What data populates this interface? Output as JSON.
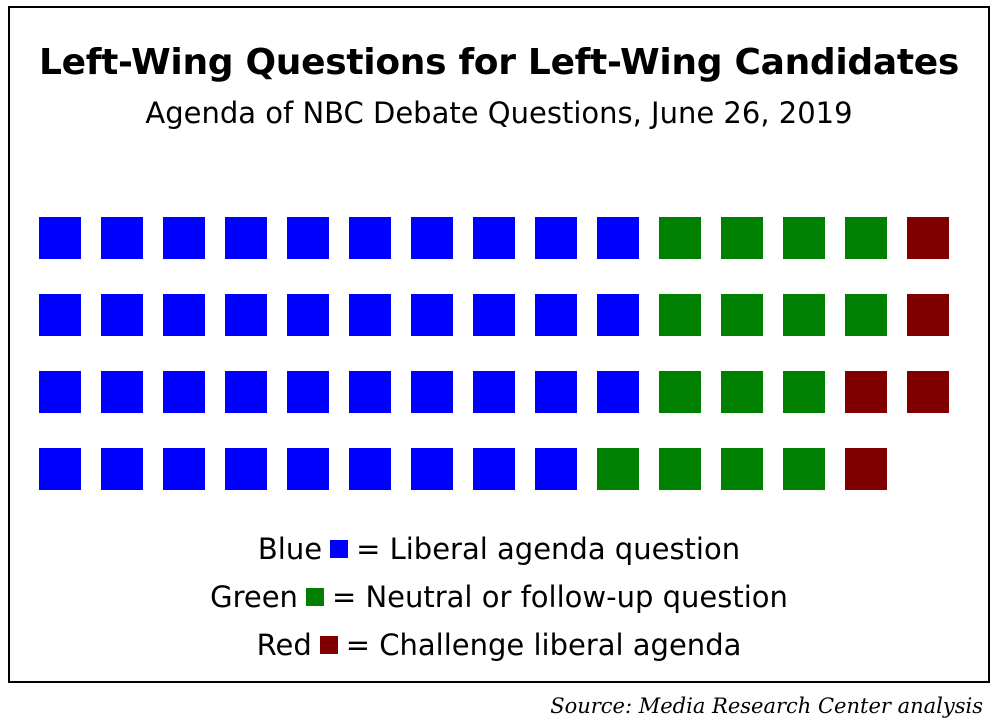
{
  "chart_data": {
    "type": "waffle",
    "title": "Left-Wing Questions for Left-Wing Candidates",
    "subtitle": "Agenda of NBC Debate Questions, June 26, 2019",
    "rows": [
      [
        "blue",
        "blue",
        "blue",
        "blue",
        "blue",
        "blue",
        "blue",
        "blue",
        "blue",
        "blue",
        "green",
        "green",
        "green",
        "green",
        "red"
      ],
      [
        "blue",
        "blue",
        "blue",
        "blue",
        "blue",
        "blue",
        "blue",
        "blue",
        "blue",
        "blue",
        "green",
        "green",
        "green",
        "green",
        "red"
      ],
      [
        "blue",
        "blue",
        "blue",
        "blue",
        "blue",
        "blue",
        "blue",
        "blue",
        "blue",
        "blue",
        "green",
        "green",
        "green",
        "red",
        "red"
      ],
      [
        "blue",
        "blue",
        "blue",
        "blue",
        "blue",
        "blue",
        "blue",
        "blue",
        "blue",
        "green",
        "green",
        "green",
        "green",
        "red"
      ]
    ],
    "legend": [
      {
        "key": "blue",
        "name": "Blue",
        "label": "= Liberal agenda question",
        "color": "#0000FF"
      },
      {
        "key": "green",
        "name": "Green",
        "label": "= Neutral or follow-up question",
        "color": "#008000"
      },
      {
        "key": "red",
        "name": "Red",
        "label": "= Challenge liberal agenda",
        "color": "#800000"
      }
    ]
  },
  "source": "Source:  Media Research Center analysis"
}
